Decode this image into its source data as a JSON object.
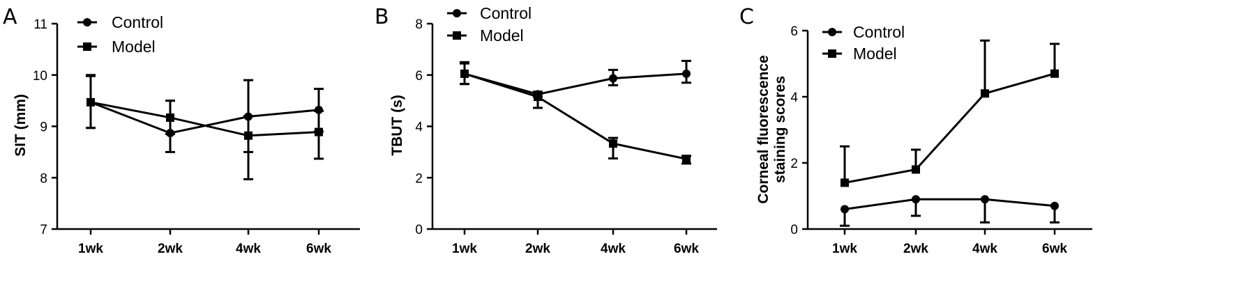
{
  "chart_data": [
    {
      "type": "line",
      "panel_label": "A",
      "ylabel": "SIT (mm)",
      "xlabel": "",
      "categories": [
        "1wk",
        "2wk",
        "4wk",
        "6wk"
      ],
      "ylim": [
        7,
        11
      ],
      "yticks": [
        "7",
        "8",
        "9",
        "10",
        "11"
      ],
      "ytick_values": [
        7,
        8,
        9,
        10,
        11
      ],
      "legend_position": "top-left",
      "series": [
        {
          "name": "Control",
          "marker": "circle",
          "values": [
            9.47,
            8.87,
            9.19,
            9.32
          ],
          "err_upper": [
            10.0,
            9.5,
            9.9,
            9.73
          ],
          "err_lower": [
            8.97,
            8.5,
            8.5,
            8.9
          ]
        },
        {
          "name": "Model",
          "marker": "square",
          "values": [
            9.47,
            9.17,
            8.82,
            8.89
          ],
          "err_upper": [
            9.98,
            9.5,
            9.2,
            9.3
          ],
          "err_lower": [
            8.97,
            8.85,
            7.97,
            8.37
          ]
        }
      ]
    },
    {
      "type": "line",
      "panel_label": "B",
      "ylabel": "TBUT (s)",
      "xlabel": "",
      "categories": [
        "1wk",
        "2wk",
        "4wk",
        "6wk"
      ],
      "ylim": [
        0,
        8
      ],
      "yticks": [
        "0",
        "2",
        "4",
        "6",
        "8"
      ],
      "ytick_values": [
        0,
        2,
        4,
        6,
        8
      ],
      "legend_position": "top-right",
      "series": [
        {
          "name": "Control",
          "marker": "circle",
          "values": [
            6.05,
            5.25,
            5.87,
            6.05
          ],
          "err_upper": [
            6.5,
            5.35,
            6.2,
            6.55
          ],
          "err_lower": [
            5.65,
            5.15,
            5.6,
            5.7
          ]
        },
        {
          "name": "Model",
          "marker": "square",
          "values": [
            6.05,
            5.15,
            3.33,
            2.73
          ],
          "err_upper": [
            6.45,
            5.25,
            3.55,
            2.85
          ],
          "err_lower": [
            5.65,
            4.72,
            2.75,
            2.55
          ]
        }
      ]
    },
    {
      "type": "line",
      "panel_label": "C",
      "ylabel": "Corneal fluorescence staining scores",
      "ylabel_lines": [
        "Corneal fluorescence",
        "staining scores"
      ],
      "xlabel": "",
      "categories": [
        "1wk",
        "2wk",
        "4wk",
        "6wk"
      ],
      "ylim": [
        0,
        6
      ],
      "yticks": [
        "0",
        "2",
        "4",
        "6"
      ],
      "ytick_values": [
        0,
        2,
        4,
        6
      ],
      "legend_position": "top-left",
      "series": [
        {
          "name": "Control",
          "marker": "circle",
          "values": [
            0.6,
            0.9,
            0.9,
            0.7
          ],
          "err_upper": [
            0.6,
            0.9,
            0.9,
            0.7
          ],
          "err_lower": [
            0.1,
            0.4,
            0.2,
            0.2
          ]
        },
        {
          "name": "Model",
          "marker": "square",
          "values": [
            1.4,
            1.8,
            4.1,
            4.7
          ],
          "err_upper": [
            2.5,
            2.4,
            5.7,
            5.6
          ],
          "err_lower": [
            1.4,
            1.8,
            4.1,
            4.7
          ]
        }
      ]
    }
  ]
}
